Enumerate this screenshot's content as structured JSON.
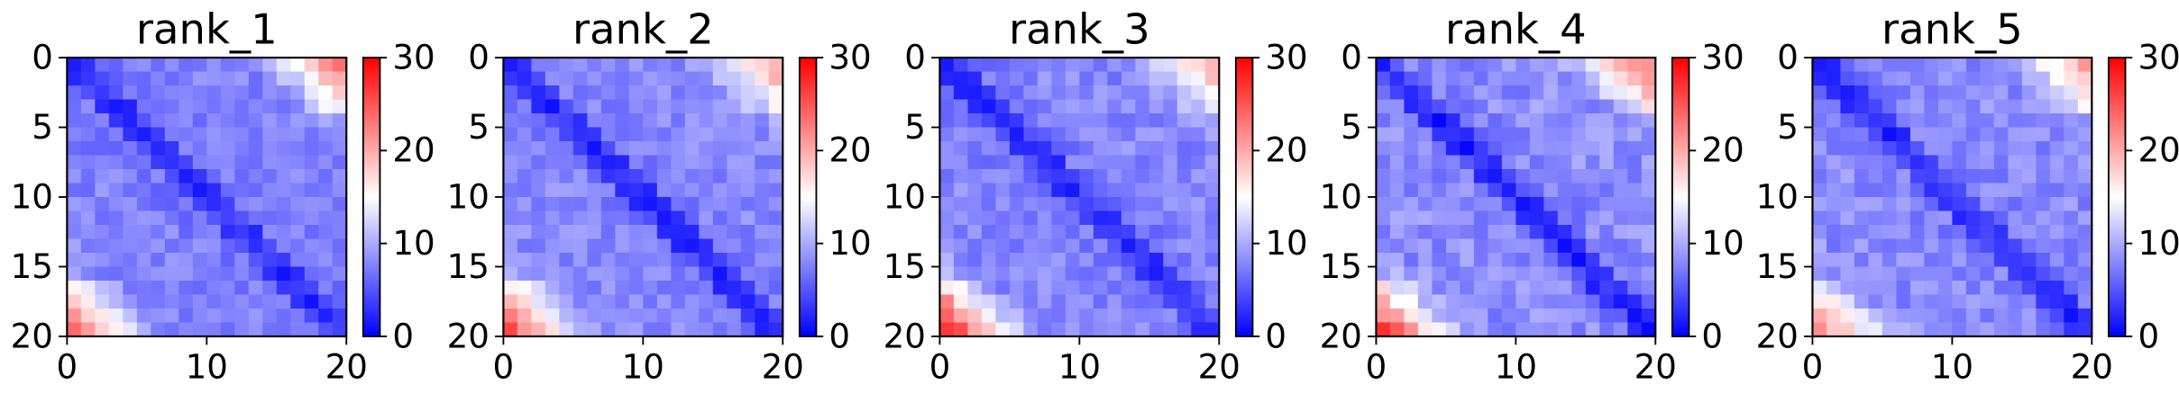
{
  "colors": {
    "low": "#0000ff",
    "mid": "#ffffff",
    "high": "#ff0000",
    "axis": "#000000"
  },
  "chart_data": [
    {
      "type": "heatmap",
      "title": "rank_1",
      "xlim": [
        0,
        20
      ],
      "ylim": [
        20,
        0
      ],
      "xticks": [
        0,
        10,
        20
      ],
      "yticks": [
        0,
        5,
        10,
        15,
        20
      ],
      "colorbar": {
        "range": [
          0,
          30
        ],
        "ticks": [
          0,
          10,
          20,
          30
        ],
        "colormap": "bwr"
      },
      "grid": false,
      "params": {
        "base": 6.5,
        "diag": 2.5,
        "near": 3.5,
        "band": 1.2,
        "topRight": 16.0,
        "bottomLeft": 15.0,
        "noise": 1.6,
        "seed": 11
      }
    },
    {
      "type": "heatmap",
      "title": "rank_2",
      "xlim": [
        0,
        20
      ],
      "ylim": [
        20,
        0
      ],
      "xticks": [
        0,
        10,
        20
      ],
      "yticks": [
        0,
        5,
        10,
        15,
        20
      ],
      "colorbar": {
        "range": [
          0,
          30
        ],
        "ticks": [
          0,
          10,
          20,
          30
        ],
        "colormap": "bwr"
      },
      "grid": false,
      "params": {
        "base": 6.8,
        "diag": 2.4,
        "near": 3.4,
        "band": 1.3,
        "topRight": 12.5,
        "bottomLeft": 17.5,
        "noise": 1.6,
        "seed": 23
      }
    },
    {
      "type": "heatmap",
      "title": "rank_3",
      "xlim": [
        0,
        20
      ],
      "ylim": [
        20,
        0
      ],
      "xticks": [
        0,
        10,
        20
      ],
      "yticks": [
        0,
        5,
        10,
        15,
        20
      ],
      "colorbar": {
        "range": [
          0,
          30
        ],
        "ticks": [
          0,
          10,
          20,
          30
        ],
        "colormap": "bwr"
      },
      "grid": false,
      "params": {
        "base": 6.6,
        "diag": 2.4,
        "near": 3.5,
        "band": 1.3,
        "topRight": 11.5,
        "bottomLeft": 20.0,
        "noise": 1.7,
        "seed": 37
      }
    },
    {
      "type": "heatmap",
      "title": "rank_4",
      "xlim": [
        0,
        20
      ],
      "ylim": [
        20,
        0
      ],
      "xticks": [
        0,
        10,
        20
      ],
      "yticks": [
        0,
        5,
        10,
        15,
        20
      ],
      "colorbar": {
        "range": [
          0,
          30
        ],
        "ticks": [
          0,
          10,
          20,
          30
        ],
        "colormap": "bwr"
      },
      "grid": false,
      "params": {
        "base": 7.2,
        "diag": 2.2,
        "near": 3.6,
        "band": 1.1,
        "topRight": 15.0,
        "bottomLeft": 18.0,
        "noise": 2.0,
        "seed": 41
      }
    },
    {
      "type": "heatmap",
      "title": "rank_5",
      "xlim": [
        0,
        20
      ],
      "ylim": [
        20,
        0
      ],
      "xticks": [
        0,
        10,
        20
      ],
      "yticks": [
        0,
        5,
        10,
        15,
        20
      ],
      "colorbar": {
        "range": [
          0,
          30
        ],
        "ticks": [
          0,
          10,
          20,
          30
        ],
        "colormap": "bwr"
      },
      "grid": false,
      "params": {
        "base": 7.0,
        "diag": 2.4,
        "near": 3.5,
        "band": 1.2,
        "topRight": 12.5,
        "bottomLeft": 13.5,
        "noise": 1.8,
        "seed": 53
      }
    }
  ]
}
